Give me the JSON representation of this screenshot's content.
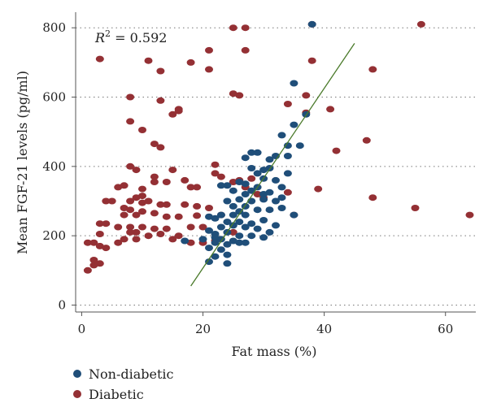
{
  "chart_data": {
    "type": "scatter",
    "xlabel": "Fat mass (%)",
    "ylabel": "Mean FGF-21 levels (pg/ml)",
    "xlim": [
      -1,
      65
    ],
    "ylim": [
      -20,
      845
    ],
    "xticks": [
      0,
      20,
      40,
      60
    ],
    "yticks": [
      0,
      200,
      400,
      600,
      800
    ],
    "grid": "horizontal dotted",
    "legend_position": "bottom-left",
    "annotation": {
      "prefix": "R",
      "sup": "2",
      "suffix": " = 0.592"
    },
    "colors": {
      "non_diabetic": "#1f4e79",
      "diabetic": "#943034",
      "fit_line": "#4a7a2a"
    },
    "fit_line": {
      "x": [
        18,
        45
      ],
      "y": [
        55,
        755
      ]
    },
    "series": [
      {
        "name": "Non-diabetic",
        "points": [
          [
            38,
            810
          ],
          [
            35,
            640
          ],
          [
            33,
            490
          ],
          [
            34,
            460
          ],
          [
            36,
            460
          ],
          [
            32,
            430
          ],
          [
            34,
            430
          ],
          [
            35,
            520
          ],
          [
            37,
            550
          ],
          [
            28,
            440
          ],
          [
            29,
            440
          ],
          [
            27,
            425
          ],
          [
            31,
            420
          ],
          [
            31,
            395
          ],
          [
            30,
            390
          ],
          [
            28,
            395
          ],
          [
            29,
            380
          ],
          [
            30,
            365
          ],
          [
            32,
            360
          ],
          [
            34,
            380
          ],
          [
            33,
            340
          ],
          [
            29,
            340
          ],
          [
            27,
            350
          ],
          [
            26,
            355
          ],
          [
            28,
            330
          ],
          [
            24,
            345
          ],
          [
            23,
            345
          ],
          [
            25,
            330
          ],
          [
            27,
            320
          ],
          [
            30,
            320
          ],
          [
            31,
            325
          ],
          [
            33,
            310
          ],
          [
            32,
            300
          ],
          [
            30,
            305
          ],
          [
            28,
            300
          ],
          [
            26,
            305
          ],
          [
            24,
            300
          ],
          [
            25,
            285
          ],
          [
            27,
            285
          ],
          [
            29,
            275
          ],
          [
            31,
            275
          ],
          [
            33,
            280
          ],
          [
            35,
            260
          ],
          [
            26,
            270
          ],
          [
            25,
            260
          ],
          [
            27,
            260
          ],
          [
            23,
            260
          ],
          [
            21,
            255
          ],
          [
            22,
            250
          ],
          [
            24,
            240
          ],
          [
            26,
            240
          ],
          [
            28,
            235
          ],
          [
            30,
            245
          ],
          [
            32,
            230
          ],
          [
            23,
            225
          ],
          [
            25,
            230
          ],
          [
            27,
            225
          ],
          [
            29,
            220
          ],
          [
            31,
            210
          ],
          [
            21,
            215
          ],
          [
            22,
            205
          ],
          [
            24,
            210
          ],
          [
            26,
            200
          ],
          [
            28,
            200
          ],
          [
            30,
            195
          ],
          [
            22,
            195
          ],
          [
            23,
            190
          ],
          [
            25,
            185
          ],
          [
            27,
            180
          ],
          [
            17,
            185
          ],
          [
            20,
            190
          ],
          [
            22,
            180
          ],
          [
            24,
            175
          ],
          [
            26,
            180
          ],
          [
            21,
            165
          ],
          [
            23,
            160
          ],
          [
            22,
            140
          ],
          [
            24,
            145
          ],
          [
            21,
            125
          ],
          [
            24,
            120
          ]
        ]
      },
      {
        "name": "Diabetic",
        "points": [
          [
            38,
            810
          ],
          [
            56,
            810
          ],
          [
            25,
            800
          ],
          [
            27,
            800
          ],
          [
            3,
            710
          ],
          [
            18,
            700
          ],
          [
            11,
            705
          ],
          [
            21,
            735
          ],
          [
            27,
            735
          ],
          [
            38,
            705
          ],
          [
            48,
            680
          ],
          [
            13,
            675
          ],
          [
            21,
            680
          ],
          [
            8,
            600
          ],
          [
            25,
            610
          ],
          [
            26,
            605
          ],
          [
            37,
            605
          ],
          [
            13,
            590
          ],
          [
            34,
            580
          ],
          [
            16,
            565
          ],
          [
            16,
            560
          ],
          [
            15,
            550
          ],
          [
            41,
            565
          ],
          [
            37,
            555
          ],
          [
            8,
            530
          ],
          [
            10,
            505
          ],
          [
            12,
            465
          ],
          [
            13,
            455
          ],
          [
            47,
            475
          ],
          [
            42,
            445
          ],
          [
            8,
            400
          ],
          [
            9,
            390
          ],
          [
            15,
            390
          ],
          [
            22,
            405
          ],
          [
            22,
            380
          ],
          [
            23,
            370
          ],
          [
            25,
            355
          ],
          [
            26,
            360
          ],
          [
            12,
            370
          ],
          [
            12,
            355
          ],
          [
            14,
            355
          ],
          [
            17,
            360
          ],
          [
            7,
            345
          ],
          [
            6,
            340
          ],
          [
            10,
            335
          ],
          [
            18,
            340
          ],
          [
            19,
            340
          ],
          [
            28,
            365
          ],
          [
            27,
            340
          ],
          [
            30,
            310
          ],
          [
            29,
            320
          ],
          [
            34,
            325
          ],
          [
            39,
            335
          ],
          [
            10,
            315
          ],
          [
            9,
            310
          ],
          [
            11,
            300
          ],
          [
            10,
            295
          ],
          [
            8,
            300
          ],
          [
            14,
            290
          ],
          [
            13,
            290
          ],
          [
            5,
            300
          ],
          [
            4,
            300
          ],
          [
            17,
            290
          ],
          [
            19,
            285
          ],
          [
            21,
            280
          ],
          [
            48,
            310
          ],
          [
            7,
            280
          ],
          [
            8,
            275
          ],
          [
            10,
            270
          ],
          [
            9,
            260
          ],
          [
            12,
            265
          ],
          [
            14,
            255
          ],
          [
            16,
            255
          ],
          [
            19,
            258
          ],
          [
            23,
            260
          ],
          [
            35,
            260
          ],
          [
            7,
            260
          ],
          [
            3,
            235
          ],
          [
            4,
            235
          ],
          [
            6,
            225
          ],
          [
            8,
            225
          ],
          [
            10,
            225
          ],
          [
            12,
            220
          ],
          [
            14,
            220
          ],
          [
            18,
            225
          ],
          [
            20,
            225
          ],
          [
            8,
            210
          ],
          [
            9,
            210
          ],
          [
            11,
            200
          ],
          [
            13,
            205
          ],
          [
            16,
            200
          ],
          [
            3,
            205
          ],
          [
            9,
            190
          ],
          [
            15,
            190
          ],
          [
            18,
            180
          ],
          [
            20,
            180
          ],
          [
            22,
            185
          ],
          [
            25,
            210
          ],
          [
            55,
            280
          ],
          [
            64,
            260
          ],
          [
            1,
            180
          ],
          [
            2,
            180
          ],
          [
            3,
            170
          ],
          [
            4,
            165
          ],
          [
            2,
            130
          ],
          [
            3,
            120
          ],
          [
            2,
            115
          ],
          [
            1,
            100
          ],
          [
            6,
            180
          ],
          [
            7,
            190
          ]
        ]
      }
    ]
  }
}
